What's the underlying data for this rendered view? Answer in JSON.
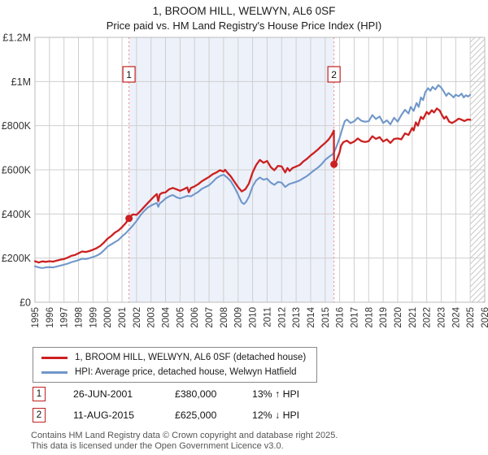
{
  "title": {
    "line1": "1, BROOM HILL, WELWYN, AL6 0SF",
    "line2": "Price paid vs. HM Land Registry's House Price Index (HPI)"
  },
  "legend": {
    "items": [
      {
        "label": "1, BROOM HILL, WELWYN, AL6 0SF (detached house)",
        "color": "#cc2020"
      },
      {
        "label": "HPI: Average price, detached house, Welwyn Hatfield",
        "color": "#7097c9"
      }
    ]
  },
  "annotations": [
    {
      "num": "1",
      "date": "26-JUN-2001",
      "price": "£380,000",
      "hpi": "13% ↑ HPI"
    },
    {
      "num": "2",
      "date": "11-AUG-2015",
      "price": "£625,000",
      "hpi": "12% ↓ HPI"
    }
  ],
  "footer": {
    "line1": "Contains HM Land Registry data © Crown copyright and database right 2025.",
    "line2": "This data is licensed under the Open Government Licence v3.0."
  },
  "chart_data": {
    "type": "line",
    "title": "1, BROOM HILL, WELWYN, AL6 0SF",
    "subtitle": "Price paid vs. HM Land Registry's House Price Index (HPI)",
    "units": "GBP thousands",
    "x_axis": {
      "range": [
        1995,
        2026
      ],
      "ticks": [
        1995,
        1996,
        1997,
        1998,
        1999,
        2000,
        2001,
        2002,
        2003,
        2004,
        2005,
        2006,
        2007,
        2008,
        2009,
        2010,
        2011,
        2012,
        2013,
        2014,
        2015,
        2016,
        2017,
        2018,
        2019,
        2020,
        2021,
        2022,
        2023,
        2024,
        2025,
        2026
      ]
    },
    "y_axis": {
      "range": [
        0,
        1200
      ],
      "ticks": [
        {
          "v": 0,
          "label": "£0"
        },
        {
          "v": 200,
          "label": "£200K"
        },
        {
          "v": 400,
          "label": "£400K"
        },
        {
          "v": 600,
          "label": "£600K"
        },
        {
          "v": 800,
          "label": "£800K"
        },
        {
          "v": 1000,
          "label": "£1M"
        },
        {
          "v": 1200,
          "label": "£1.2M"
        }
      ]
    },
    "grid": true,
    "shaded_region": {
      "from": 2001.48,
      "to": 2015.61,
      "color": "#edf1fa"
    },
    "hatched_region": {
      "from": 2025.0,
      "to": 2026.0
    },
    "sales": [
      {
        "label": "1",
        "x": 2001.48,
        "price_k": 380,
        "date": "26-JUN-2001",
        "vs_hpi": "13% ↑ HPI"
      },
      {
        "label": "2",
        "x": 2015.61,
        "price_k": 625,
        "date": "11-AUG-2015",
        "vs_hpi": "12% ↓ HPI"
      }
    ],
    "dashed_line_color": "#ec8888",
    "series": [
      {
        "name": "1, BROOM HILL, WELWYN, AL6 0SF (detached house)",
        "color": "#cc2020",
        "width": 2.3,
        "points": [
          [
            1995,
            186
          ],
          [
            1995.25,
            180
          ],
          [
            1995.5,
            185
          ],
          [
            1995.75,
            183
          ],
          [
            1996,
            186
          ],
          [
            1996.25,
            184
          ],
          [
            1996.5,
            189
          ],
          [
            1996.75,
            193
          ],
          [
            1997,
            196
          ],
          [
            1997.25,
            202
          ],
          [
            1997.5,
            210
          ],
          [
            1997.75,
            214
          ],
          [
            1998,
            222
          ],
          [
            1998.25,
            230
          ],
          [
            1998.5,
            228
          ],
          [
            1998.75,
            232
          ],
          [
            1999,
            238
          ],
          [
            1999.25,
            245
          ],
          [
            1999.5,
            255
          ],
          [
            1999.75,
            270
          ],
          [
            2000,
            288
          ],
          [
            2000.25,
            300
          ],
          [
            2000.5,
            315
          ],
          [
            2000.75,
            325
          ],
          [
            2001,
            340
          ],
          [
            2001.25,
            358
          ],
          [
            2001.48,
            380
          ],
          [
            2001.6,
            390
          ],
          [
            2001.75,
            398
          ],
          [
            2002,
            396
          ],
          [
            2002.25,
            412
          ],
          [
            2002.5,
            430
          ],
          [
            2002.75,
            448
          ],
          [
            2003,
            465
          ],
          [
            2003.25,
            482
          ],
          [
            2003.4,
            490
          ],
          [
            2003.5,
            458
          ],
          [
            2003.6,
            488
          ],
          [
            2003.75,
            495
          ],
          [
            2004,
            498
          ],
          [
            2004.25,
            512
          ],
          [
            2004.5,
            518
          ],
          [
            2004.75,
            512
          ],
          [
            2005,
            505
          ],
          [
            2005.25,
            512
          ],
          [
            2005.5,
            520
          ],
          [
            2005.6,
            498
          ],
          [
            2005.75,
            518
          ],
          [
            2006,
            525
          ],
          [
            2006.25,
            535
          ],
          [
            2006.5,
            548
          ],
          [
            2006.75,
            558
          ],
          [
            2007,
            568
          ],
          [
            2007.25,
            580
          ],
          [
            2007.5,
            588
          ],
          [
            2007.75,
            598
          ],
          [
            2008,
            592
          ],
          [
            2008.1,
            600
          ],
          [
            2008.25,
            588
          ],
          [
            2008.5,
            570
          ],
          [
            2008.75,
            545
          ],
          [
            2009,
            522
          ],
          [
            2009.25,
            502
          ],
          [
            2009.5,
            512
          ],
          [
            2009.75,
            538
          ],
          [
            2010,
            588
          ],
          [
            2010.25,
            622
          ],
          [
            2010.5,
            645
          ],
          [
            2010.75,
            632
          ],
          [
            2011,
            640
          ],
          [
            2011.25,
            612
          ],
          [
            2011.5,
            598
          ],
          [
            2011.75,
            618
          ],
          [
            2012,
            615
          ],
          [
            2012.25,
            588
          ],
          [
            2012.4,
            608
          ],
          [
            2012.55,
            595
          ],
          [
            2012.75,
            608
          ],
          [
            2013,
            615
          ],
          [
            2013.25,
            622
          ],
          [
            2013.5,
            638
          ],
          [
            2013.75,
            650
          ],
          [
            2014,
            665
          ],
          [
            2014.25,
            678
          ],
          [
            2014.5,
            692
          ],
          [
            2014.75,
            708
          ],
          [
            2015,
            722
          ],
          [
            2015.25,
            738
          ],
          [
            2015.45,
            758
          ],
          [
            2015.6,
            778
          ],
          [
            2015.61,
            625
          ],
          [
            2015.75,
            638
          ],
          [
            2016,
            680
          ],
          [
            2016.1,
            710
          ],
          [
            2016.25,
            725
          ],
          [
            2016.5,
            732
          ],
          [
            2016.75,
            720
          ],
          [
            2017,
            728
          ],
          [
            2017.25,
            742
          ],
          [
            2017.5,
            730
          ],
          [
            2017.75,
            726
          ],
          [
            2018,
            730
          ],
          [
            2018.25,
            752
          ],
          [
            2018.5,
            740
          ],
          [
            2018.75,
            748
          ],
          [
            2019,
            728
          ],
          [
            2019.25,
            738
          ],
          [
            2019.5,
            722
          ],
          [
            2019.75,
            740
          ],
          [
            2020,
            742
          ],
          [
            2020.25,
            738
          ],
          [
            2020.5,
            765
          ],
          [
            2020.75,
            758
          ],
          [
            2021,
            790
          ],
          [
            2021.1,
            778
          ],
          [
            2021.25,
            815
          ],
          [
            2021.4,
            800
          ],
          [
            2021.6,
            840
          ],
          [
            2021.75,
            830
          ],
          [
            2022,
            862
          ],
          [
            2022.15,
            852
          ],
          [
            2022.35,
            870
          ],
          [
            2022.5,
            860
          ],
          [
            2022.7,
            878
          ],
          [
            2022.9,
            868
          ],
          [
            2023.05,
            848
          ],
          [
            2023.2,
            832
          ],
          [
            2023.35,
            842
          ],
          [
            2023.55,
            818
          ],
          [
            2023.75,
            812
          ],
          [
            2024,
            822
          ],
          [
            2024.2,
            832
          ],
          [
            2024.4,
            827
          ],
          [
            2024.6,
            821
          ],
          [
            2024.8,
            828
          ],
          [
            2025,
            827
          ]
        ]
      },
      {
        "name": "HPI: Average price, detached house, Welwyn Hatfield",
        "color": "#7097c9",
        "width": 2.1,
        "points": [
          [
            1995,
            163
          ],
          [
            1995.25,
            158
          ],
          [
            1995.5,
            155
          ],
          [
            1995.75,
            158
          ],
          [
            1996,
            159
          ],
          [
            1996.25,
            158
          ],
          [
            1996.5,
            162
          ],
          [
            1996.75,
            166
          ],
          [
            1997,
            170
          ],
          [
            1997.25,
            175
          ],
          [
            1997.5,
            181
          ],
          [
            1997.75,
            186
          ],
          [
            1998,
            191
          ],
          [
            1998.25,
            197
          ],
          [
            1998.5,
            196
          ],
          [
            1998.75,
            200
          ],
          [
            1999,
            205
          ],
          [
            1999.25,
            211
          ],
          [
            1999.5,
            220
          ],
          [
            1999.75,
            235
          ],
          [
            2000,
            252
          ],
          [
            2000.25,
            262
          ],
          [
            2000.5,
            272
          ],
          [
            2000.75,
            282
          ],
          [
            2001,
            298
          ],
          [
            2001.25,
            312
          ],
          [
            2001.5,
            330
          ],
          [
            2001.75,
            348
          ],
          [
            2002,
            368
          ],
          [
            2002.25,
            392
          ],
          [
            2002.5,
            412
          ],
          [
            2002.75,
            428
          ],
          [
            2003,
            438
          ],
          [
            2003.25,
            446
          ],
          [
            2003.4,
            450
          ],
          [
            2003.5,
            432
          ],
          [
            2003.6,
            448
          ],
          [
            2003.75,
            455
          ],
          [
            2004,
            470
          ],
          [
            2004.25,
            480
          ],
          [
            2004.5,
            486
          ],
          [
            2004.75,
            476
          ],
          [
            2005,
            470
          ],
          [
            2005.25,
            476
          ],
          [
            2005.5,
            482
          ],
          [
            2005.75,
            480
          ],
          [
            2006,
            490
          ],
          [
            2006.25,
            500
          ],
          [
            2006.5,
            514
          ],
          [
            2006.75,
            522
          ],
          [
            2007,
            530
          ],
          [
            2007.25,
            545
          ],
          [
            2007.5,
            562
          ],
          [
            2007.75,
            572
          ],
          [
            2008,
            578
          ],
          [
            2008.25,
            565
          ],
          [
            2008.5,
            548
          ],
          [
            2008.75,
            520
          ],
          [
            2009,
            488
          ],
          [
            2009.25,
            452
          ],
          [
            2009.4,
            445
          ],
          [
            2009.55,
            455
          ],
          [
            2009.75,
            478
          ],
          [
            2010,
            525
          ],
          [
            2010.25,
            552
          ],
          [
            2010.5,
            565
          ],
          [
            2010.75,
            555
          ],
          [
            2011,
            560
          ],
          [
            2011.25,
            542
          ],
          [
            2011.5,
            532
          ],
          [
            2011.75,
            545
          ],
          [
            2012,
            542
          ],
          [
            2012.25,
            522
          ],
          [
            2012.5,
            535
          ],
          [
            2012.75,
            540
          ],
          [
            2013,
            545
          ],
          [
            2013.25,
            552
          ],
          [
            2013.5,
            562
          ],
          [
            2013.75,
            572
          ],
          [
            2014,
            585
          ],
          [
            2014.25,
            598
          ],
          [
            2014.5,
            610
          ],
          [
            2014.75,
            625
          ],
          [
            2015,
            645
          ],
          [
            2015.25,
            658
          ],
          [
            2015.5,
            670
          ],
          [
            2015.6,
            678
          ],
          [
            2015.75,
            700
          ],
          [
            2016,
            745
          ],
          [
            2016.2,
            790
          ],
          [
            2016.35,
            820
          ],
          [
            2016.5,
            828
          ],
          [
            2016.75,
            812
          ],
          [
            2017,
            820
          ],
          [
            2017.25,
            836
          ],
          [
            2017.5,
            822
          ],
          [
            2017.75,
            818
          ],
          [
            2018,
            820
          ],
          [
            2018.25,
            848
          ],
          [
            2018.5,
            830
          ],
          [
            2018.75,
            842
          ],
          [
            2019,
            812
          ],
          [
            2019.25,
            824
          ],
          [
            2019.5,
            806
          ],
          [
            2019.75,
            836
          ],
          [
            2020,
            818
          ],
          [
            2020.25,
            848
          ],
          [
            2020.5,
            872
          ],
          [
            2020.75,
            855
          ],
          [
            2020.9,
            885
          ],
          [
            2021.1,
            867
          ],
          [
            2021.3,
            903
          ],
          [
            2021.45,
            885
          ],
          [
            2021.6,
            928
          ],
          [
            2021.75,
            916
          ],
          [
            2021.9,
            952
          ],
          [
            2022.1,
            970
          ],
          [
            2022.25,
            958
          ],
          [
            2022.4,
            976
          ],
          [
            2022.6,
            964
          ],
          [
            2022.8,
            984
          ],
          [
            2023,
            972
          ],
          [
            2023.2,
            952
          ],
          [
            2023.35,
            935
          ],
          [
            2023.5,
            948
          ],
          [
            2023.7,
            938
          ],
          [
            2023.85,
            928
          ],
          [
            2024,
            940
          ],
          [
            2024.2,
            933
          ],
          [
            2024.4,
            945
          ],
          [
            2024.55,
            928
          ],
          [
            2024.7,
            938
          ],
          [
            2024.85,
            932
          ],
          [
            2025,
            940
          ]
        ]
      }
    ],
    "legend_position": "bottom",
    "colors": {
      "grid": "#cfcfcf",
      "border": "#bbbbbb",
      "hatch": "#c8c8c8",
      "axis_text": "#333333",
      "marker_box_border": "#c02020"
    }
  }
}
